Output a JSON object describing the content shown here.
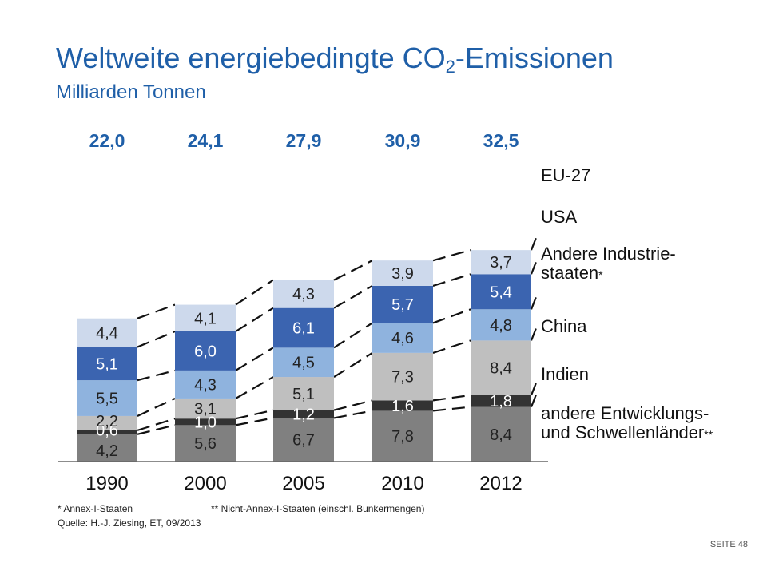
{
  "title_main": "Weltweite energiebedingte CO",
  "title_sub": "2",
  "title_end": "-Emissionen",
  "subtitle": "Milliarden Tonnen",
  "chart_data": {
    "type": "bar",
    "stacked": true,
    "categories": [
      "1990",
      "2000",
      "2005",
      "2010",
      "2012"
    ],
    "totals": [
      "22,0",
      "24,1",
      "27,9",
      "30,9",
      "32,5"
    ],
    "series": [
      {
        "name": "andere Entwicklungs- und Schwellenländer **",
        "color": "#808080",
        "values": [
          4.2,
          5.6,
          6.7,
          7.8,
          8.4
        ],
        "labels": [
          "4,2",
          "5,6",
          "6,7",
          "7,8",
          "8,4"
        ]
      },
      {
        "name": "Indien",
        "color": "#333333",
        "values": [
          0.6,
          1.0,
          1.2,
          1.6,
          1.8
        ],
        "labels": [
          "0,6",
          "1,0",
          "1,2",
          "1,6",
          "1,8"
        ]
      },
      {
        "name": "China",
        "color": "#bfbfbf",
        "values": [
          2.2,
          3.1,
          5.1,
          7.3,
          8.4
        ],
        "labels": [
          "2,2",
          "3,1",
          "5,1",
          "7,3",
          "8,4"
        ]
      },
      {
        "name": "Andere Industrie- staaten *",
        "color": "#8fb3de",
        "values": [
          5.5,
          4.3,
          4.5,
          4.6,
          4.8
        ],
        "labels": [
          "5,5",
          "4,3",
          "4,5",
          "4,6",
          "4,8"
        ]
      },
      {
        "name": "USA",
        "color": "#3b64b0",
        "values": [
          5.1,
          6.0,
          6.1,
          5.7,
          5.4
        ],
        "labels": [
          "5,1",
          "6,0",
          "6,1",
          "5,7",
          "5,4"
        ]
      },
      {
        "name": "EU-27",
        "color": "#cdd9ec",
        "values": [
          4.4,
          4.1,
          4.3,
          3.9,
          3.7
        ],
        "labels": [
          "4,4",
          "4,1",
          "4,3",
          "3,9",
          "3,7"
        ]
      }
    ],
    "legend": [
      {
        "line1": "EU-27",
        "line2": "",
        "sup": ""
      },
      {
        "line1": "USA",
        "line2": "",
        "sup": ""
      },
      {
        "line1": "Andere Industrie-",
        "line2": "staaten",
        "sup": "*"
      },
      {
        "line1": "China",
        "line2": "",
        "sup": ""
      },
      {
        "line1": "Indien",
        "line2": "",
        "sup": ""
      },
      {
        "line1": "andere Entwicklungs-",
        "line2": "und Schwellenländer",
        "sup": "**"
      }
    ],
    "legend_placement": "right",
    "grid": false,
    "total_color": "#1f5fa8"
  },
  "footnotes": {
    "annex1": "* Annex-I-Staaten",
    "non_annex1": "** Nicht-Annex-I-Staaten  (einschl. Bunkermengen)",
    "source": "Quelle:  H.-J. Ziesing, ET, 09/2013"
  },
  "page_label": "SEITE 48"
}
